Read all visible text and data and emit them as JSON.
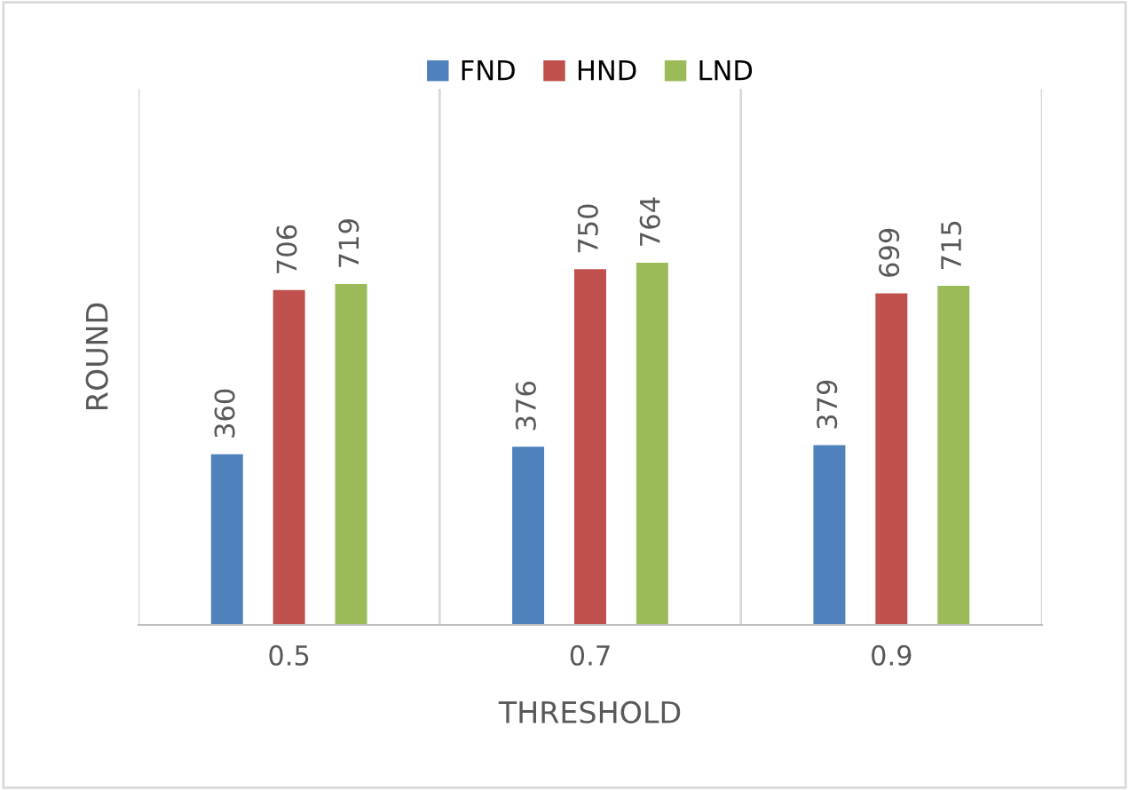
{
  "chart_data": {
    "type": "bar",
    "xlabel": "THRESHOLD",
    "ylabel": "ROUND",
    "categories": [
      "0.5",
      "0.7",
      "0.9"
    ],
    "series": [
      {
        "name": "FND",
        "color": "#4f81bd",
        "values": [
          360,
          376,
          379
        ]
      },
      {
        "name": "HND",
        "color": "#c0504d",
        "values": [
          706,
          750,
          699
        ]
      },
      {
        "name": "LND",
        "color": "#9bbb59",
        "values": [
          719,
          764,
          715
        ]
      }
    ],
    "data_labels": true,
    "grid": "x",
    "legend": "top",
    "tick_labels": "x"
  }
}
